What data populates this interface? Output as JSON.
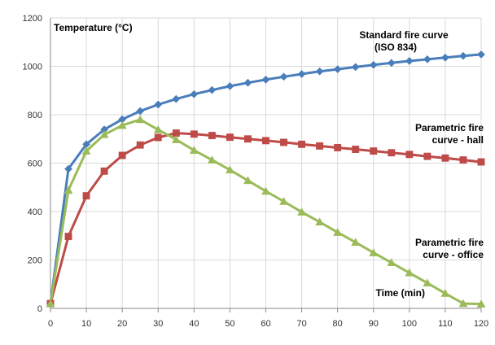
{
  "chart_data": {
    "type": "line",
    "title": "",
    "ylabel": "Temperature (°C)",
    "xlabel": "Time (min)",
    "xlim": [
      0,
      120
    ],
    "ylim": [
      0,
      1200
    ],
    "x_ticks": [
      0,
      10,
      20,
      30,
      40,
      50,
      60,
      70,
      80,
      90,
      100,
      110,
      120
    ],
    "y_ticks": [
      0,
      200,
      400,
      600,
      800,
      1000,
      1200
    ],
    "grid": true,
    "legend": "none",
    "series": [
      {
        "name": "Standard fire curve (ISO 834)",
        "label_lines": [
          "Standard fire curve",
          "(ISO 834)"
        ],
        "color": "#4a7ebb",
        "marker": "diamond",
        "x": [
          0,
          5,
          10,
          15,
          20,
          25,
          30,
          35,
          40,
          45,
          50,
          55,
          60,
          65,
          70,
          75,
          80,
          85,
          90,
          95,
          100,
          105,
          110,
          115,
          120
        ],
        "y": [
          20,
          576,
          678,
          739,
          781,
          815,
          842,
          865,
          885,
          902,
          918,
          932,
          945,
          957,
          968,
          979,
          988,
          997,
          1006,
          1014,
          1022,
          1029,
          1036,
          1043,
          1049
        ]
      },
      {
        "name": "Parametric fire curve - hall",
        "label_lines": [
          "Parametric fire",
          "curve - hall"
        ],
        "color": "#be4b48",
        "marker": "square",
        "x": [
          0,
          5,
          10,
          15,
          20,
          25,
          30,
          35,
          40,
          45,
          50,
          55,
          60,
          65,
          70,
          75,
          80,
          85,
          90,
          95,
          100,
          105,
          110,
          115,
          120
        ],
        "y": [
          20,
          297,
          465,
          567,
          632,
          675,
          706,
          724,
          720,
          714,
          707,
          700,
          693,
          686,
          678,
          671,
          664,
          657,
          650,
          643,
          636,
          628,
          621,
          613,
          605
        ]
      },
      {
        "name": "Parametric fire curve - office",
        "label_lines": [
          "Parametric fire",
          "curve - office"
        ],
        "color": "#9bbb59",
        "marker": "triangle",
        "x": [
          0,
          5,
          10,
          15,
          20,
          25,
          30,
          35,
          40,
          45,
          50,
          55,
          60,
          65,
          70,
          75,
          80,
          85,
          90,
          95,
          100,
          105,
          110,
          115,
          120
        ],
        "y": [
          20,
          488,
          650,
          718,
          756,
          780,
          738,
          697,
          653,
          613,
          572,
          528,
          484,
          442,
          398,
          357,
          314,
          273,
          230,
          189,
          147,
          105,
          62,
          20,
          18
        ]
      }
    ]
  }
}
